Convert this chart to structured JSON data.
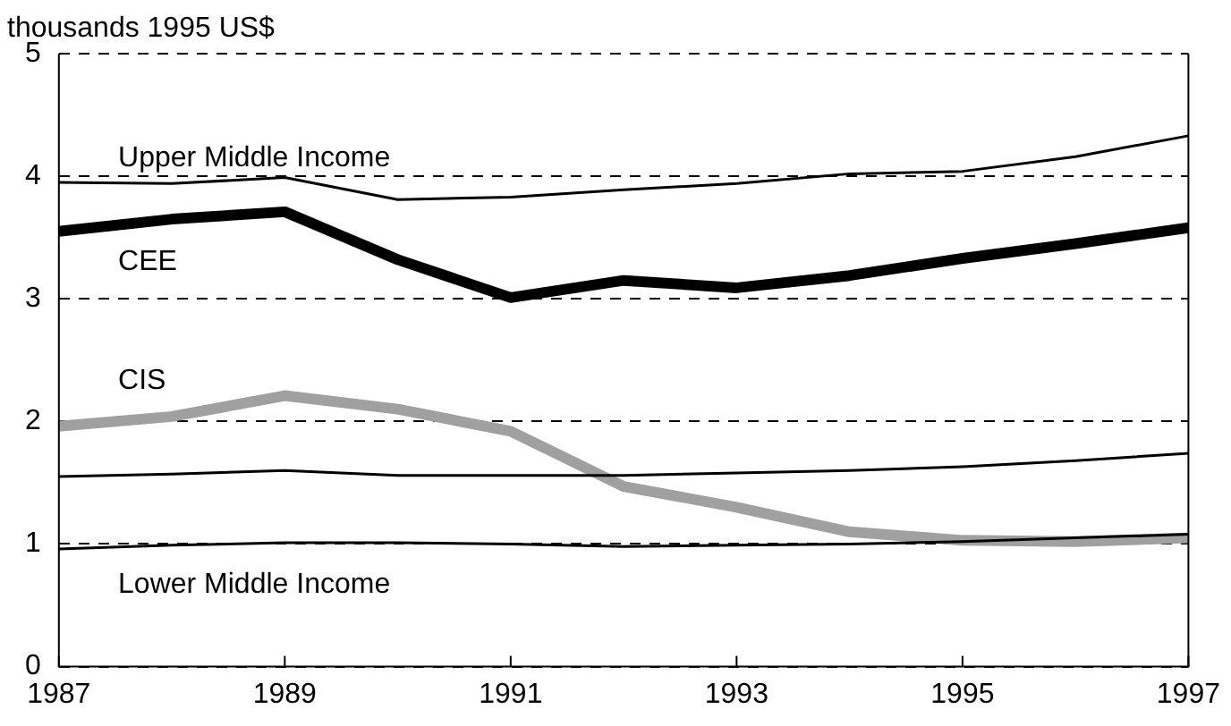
{
  "chart_data": {
    "type": "line",
    "ylabel": "thousands 1995 US$",
    "x": [
      1987,
      1988,
      1989,
      1990,
      1991,
      1992,
      1993,
      1994,
      1995,
      1996,
      1997
    ],
    "xlim": [
      1987,
      1997
    ],
    "xticks": [
      1987,
      1989,
      1991,
      1993,
      1995,
      1997
    ],
    "ylim": [
      0,
      5
    ],
    "yticks": [
      0,
      1,
      2,
      3,
      4,
      5
    ],
    "grid": "y",
    "legend": false,
    "marker": "none",
    "line_style": "solid",
    "series": [
      {
        "name": "Upper Middle Income",
        "color": "#000000",
        "values": [
          3.95,
          3.94,
          3.99,
          3.81,
          3.83,
          3.89,
          3.94,
          4.02,
          4.04,
          4.16,
          4.33
        ]
      },
      {
        "name": "CEE",
        "color": "#000000",
        "values": [
          3.55,
          3.65,
          3.71,
          3.32,
          3.01,
          3.15,
          3.09,
          3.19,
          3.33,
          3.45,
          3.58
        ]
      },
      {
        "name": "CIS",
        "color": "#a0a0a0",
        "values": [
          1.96,
          2.04,
          2.21,
          2.1,
          1.92,
          1.47,
          1.3,
          1.1,
          1.03,
          1.02,
          1.05
        ]
      },
      {
        "color": "#000000",
        "values": [
          1.55,
          1.57,
          1.6,
          1.56,
          1.56,
          1.56,
          1.58,
          1.6,
          1.63,
          1.68,
          1.74
        ]
      },
      {
        "name": "Lower Middle Income",
        "color": "#000000",
        "values": [
          0.96,
          0.99,
          1.01,
          1.01,
          1.0,
          0.98,
          0.99,
          1.0,
          1.02,
          1.05,
          1.08
        ]
      }
    ]
  }
}
